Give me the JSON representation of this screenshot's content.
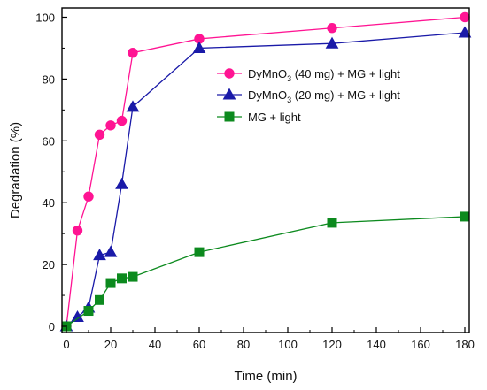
{
  "chart_data": {
    "type": "line",
    "xlabel": "Time (min)",
    "ylabel": "Degradation (%)",
    "xlim": [
      -2,
      182
    ],
    "ylim": [
      -2,
      103
    ],
    "xticks": [
      0,
      20,
      40,
      60,
      80,
      100,
      120,
      140,
      160,
      180
    ],
    "yticks": [
      0,
      20,
      40,
      60,
      80,
      100
    ],
    "grid": false,
    "legend_position": "top-right",
    "series": [
      {
        "name": "DyMnO3 (40 mg) + MG + light",
        "legend_parts": {
          "before": "DyMnO",
          "sub": "3",
          "after": " (40 mg) + MG + light"
        },
        "marker": "circle",
        "color": "#ff1493",
        "x": [
          0,
          5,
          10,
          15,
          20,
          25,
          30,
          60,
          120,
          180
        ],
        "y": [
          0,
          31,
          42,
          62,
          65,
          66.5,
          88.5,
          93,
          96.5,
          100
        ]
      },
      {
        "name": "DyMnO3 (20 mg) + MG + light",
        "legend_parts": {
          "before": "DyMnO",
          "sub": "3",
          "after": " (20 mg) + MG + light"
        },
        "marker": "triangle",
        "color": "#1a1aa8",
        "x": [
          0,
          5,
          10,
          15,
          20,
          25,
          30,
          60,
          120,
          180
        ],
        "y": [
          0,
          3,
          6,
          23,
          24,
          46,
          71,
          90,
          91.5,
          95
        ]
      },
      {
        "name": "MG + light",
        "legend_parts": {
          "before": "MG + light",
          "sub": "",
          "after": ""
        },
        "marker": "square",
        "color": "#0c8a1e",
        "x": [
          0,
          10,
          15,
          20,
          25,
          30,
          60,
          120,
          180
        ],
        "y": [
          0,
          5,
          8.5,
          14,
          15.5,
          16,
          24,
          33.5,
          35.5
        ]
      }
    ]
  }
}
